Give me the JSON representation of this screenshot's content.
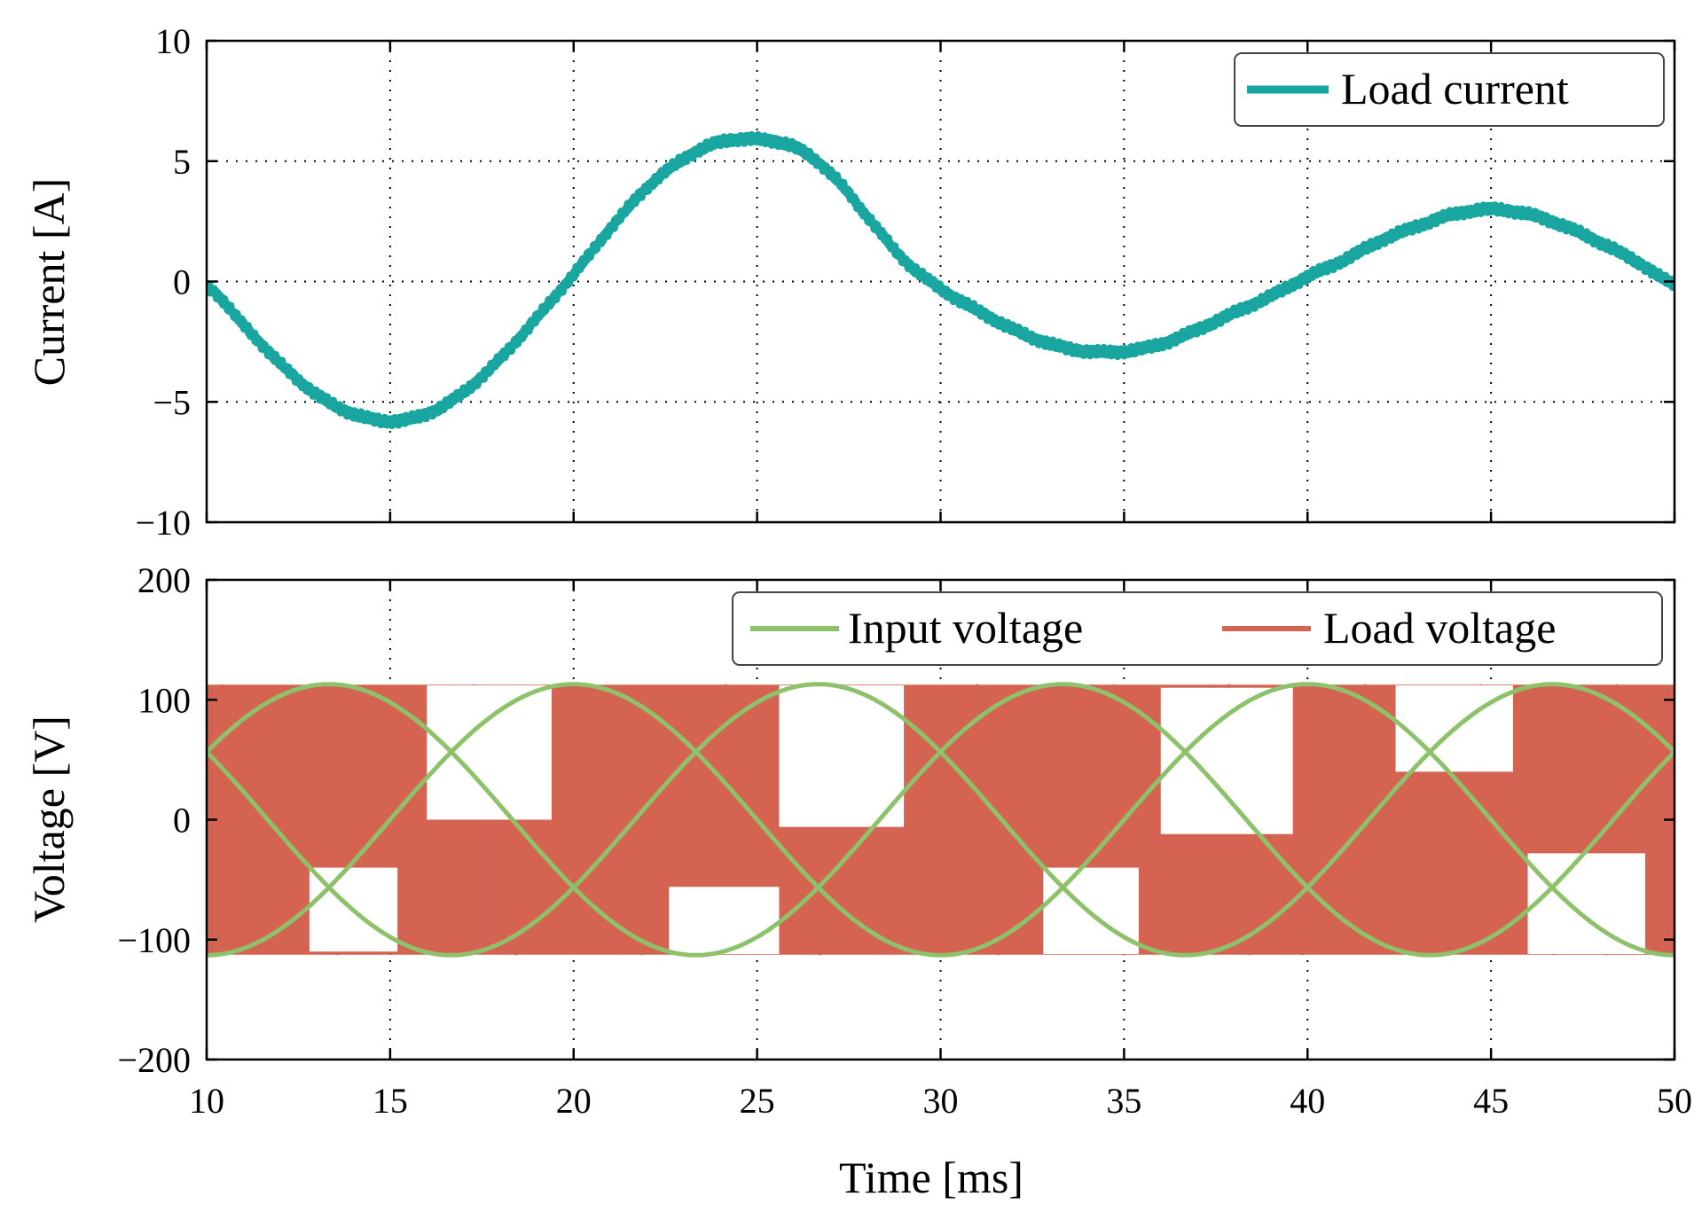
{
  "chart_data": [
    {
      "type": "line",
      "panel": "top",
      "title": "",
      "xlabel": "",
      "ylabel": "Current [A]",
      "xlim": [
        10,
        50
      ],
      "ylim": [
        -10,
        10
      ],
      "x_ticks": [
        10,
        15,
        20,
        25,
        30,
        35,
        40,
        45,
        50
      ],
      "y_ticks": [
        10,
        5,
        0,
        -5,
        -10
      ],
      "y_tick_labels": [
        "10",
        "5",
        "0",
        "−5",
        "−10"
      ],
      "grid": true,
      "legend_position": "top-right",
      "series": [
        {
          "name": "Load current",
          "color": "#1aa6a0",
          "x": [
            10,
            11,
            12,
            13,
            14,
            15,
            16,
            17,
            18,
            19,
            20,
            21,
            22,
            23,
            24,
            25,
            26,
            27,
            28,
            29,
            30,
            31,
            32,
            33,
            34,
            35,
            36,
            37,
            38,
            39,
            40,
            41,
            42,
            43,
            44,
            45,
            46,
            47,
            48,
            49,
            50
          ],
          "values": [
            -0.2,
            -1.8,
            -3.4,
            -4.7,
            -5.5,
            -5.8,
            -5.5,
            -4.6,
            -3.2,
            -1.5,
            0.3,
            2.2,
            3.9,
            5.1,
            5.8,
            5.9,
            5.6,
            4.5,
            2.7,
            0.9,
            -0.3,
            -1.2,
            -2.0,
            -2.6,
            -2.9,
            -2.9,
            -2.6,
            -2.0,
            -1.3,
            -0.6,
            0.2,
            0.9,
            1.7,
            2.3,
            2.8,
            3.0,
            2.8,
            2.3,
            1.6,
            0.8,
            -0.1
          ]
        }
      ]
    },
    {
      "type": "line",
      "panel": "bottom",
      "title": "",
      "xlabel": "Time [ms]",
      "ylabel": "Voltage [V]",
      "xlim": [
        10,
        50
      ],
      "ylim": [
        -200,
        200
      ],
      "x_ticks": [
        10,
        15,
        20,
        25,
        30,
        35,
        40,
        45,
        50
      ],
      "x_tick_labels": [
        "10",
        "15",
        "20",
        "25",
        "30",
        "35",
        "40",
        "45",
        "50"
      ],
      "y_ticks": [
        200,
        100,
        0,
        -100,
        -200
      ],
      "y_tick_labels": [
        "200",
        "100",
        "0",
        "−100",
        "−200"
      ],
      "grid": true,
      "legend_position": "top-right",
      "series": [
        {
          "name": "Input voltage",
          "color": "#8dc26a",
          "kind": "three-phase sinusoid",
          "amplitude": 113,
          "frequency_hz": 50,
          "phase_deg": [
            90,
            -30,
            210
          ]
        },
        {
          "name": "Load voltage",
          "color": "#d46352",
          "kind": "switched envelope",
          "upper_envelope": 113,
          "lower_envelope": -113
        }
      ]
    }
  ]
}
